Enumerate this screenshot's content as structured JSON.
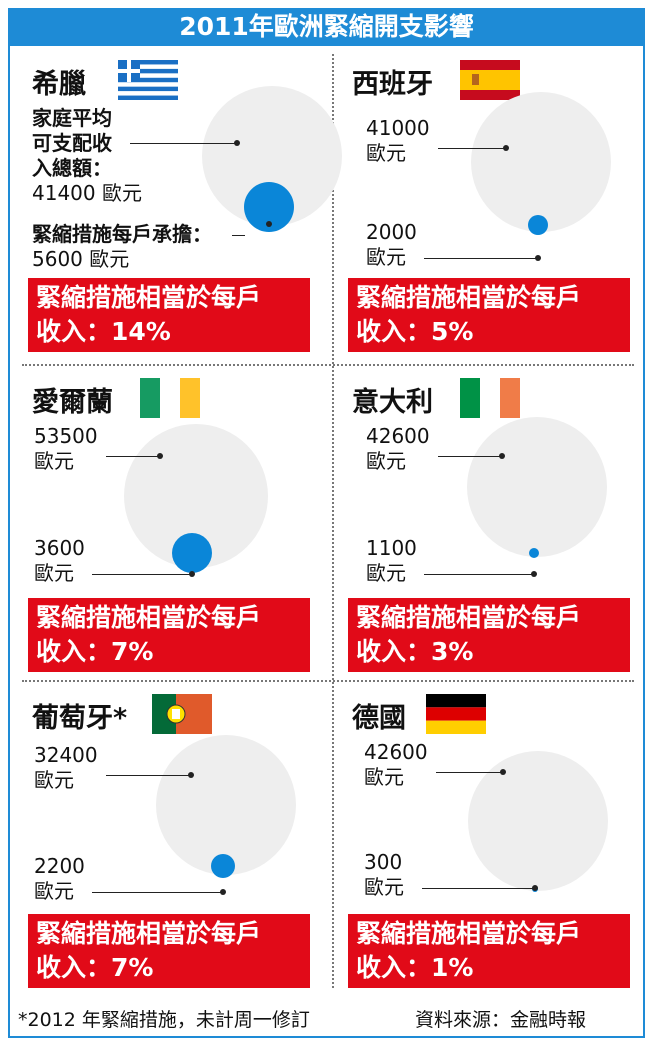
{
  "title": "2011年歐洲緊縮開支影響",
  "colors": {
    "accent": "#1e8bd6",
    "box": "#e10a18",
    "bubble_income": "#eeeeee",
    "bubble_burden": "#0a86d8"
  },
  "chart_data": {
    "type": "bubble",
    "title": "2011年歐洲緊縮開支影響",
    "countries": [
      {
        "name": "希臘",
        "flag": "greece-flag-icon",
        "income": 41400,
        "burden": 5600,
        "percent": 14,
        "income_label": [
          "家庭平均",
          "可支配收",
          "入總額：",
          "41400 歐元"
        ],
        "burden_label": [
          "緊縮措施每戶承擔：",
          "5600 歐元"
        ],
        "box": [
          "緊縮措施相當於每戶",
          "收入：14%"
        ]
      },
      {
        "name": "西班牙",
        "flag": "spain-flag-icon",
        "income": 41000,
        "burden": 2000,
        "percent": 5,
        "income_label": [
          "41000",
          "歐元"
        ],
        "burden_label": [
          "2000",
          "歐元"
        ],
        "box": [
          "緊縮措施相當於每戶",
          "收入：5%"
        ]
      },
      {
        "name": "愛爾蘭",
        "flag": "ireland-flag-icon",
        "income": 53500,
        "burden": 3600,
        "percent": 7,
        "income_label": [
          "53500",
          "歐元"
        ],
        "burden_label": [
          "3600",
          "歐元"
        ],
        "box": [
          "緊縮措施相當於每戶",
          "收入：7%"
        ]
      },
      {
        "name": "意大利",
        "flag": "italy-flag-icon",
        "income": 42600,
        "burden": 1100,
        "percent": 3,
        "income_label": [
          "42600",
          "歐元"
        ],
        "burden_label": [
          "1100",
          "歐元"
        ],
        "box": [
          "緊縮措施相當於每戶",
          "收入：3%"
        ]
      },
      {
        "name": "葡萄牙*",
        "flag": "portugal-flag-icon",
        "income": 32400,
        "burden": 2200,
        "percent": 7,
        "income_label": [
          "32400",
          "歐元"
        ],
        "burden_label": [
          "2200",
          "歐元"
        ],
        "box": [
          "緊縮措施相當於每戶",
          "收入：7%"
        ]
      },
      {
        "name": "德國",
        "flag": "germany-flag-icon",
        "income": 42600,
        "burden": 300,
        "percent": 1,
        "income_label": [
          "42600",
          "歐元"
        ],
        "burden_label": [
          "300",
          "歐元"
        ],
        "box": [
          "緊縮措施相當於每戶",
          "收入：1%"
        ]
      }
    ]
  },
  "footer": {
    "note": "*2012 年緊縮措施，未計周一修訂",
    "source": "資料來源：金融時報"
  }
}
